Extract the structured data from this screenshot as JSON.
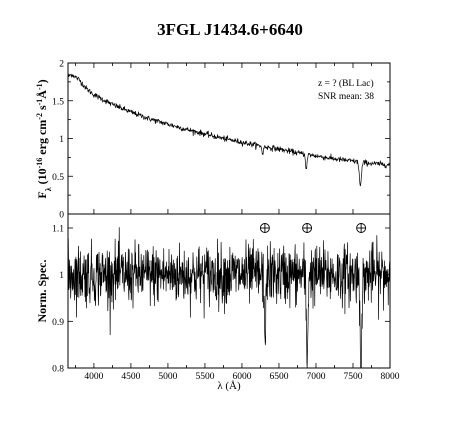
{
  "chart_data": [
    {
      "type": "line",
      "title": "3FGL J1434.6+6640",
      "ylabel_main": "F",
      "ylabel_sub": "λ",
      "ylabel_rest": " (10",
      "ylabel_exp": "-16",
      "ylabel_units": " erg cm",
      "ylabel_exp2": "-2",
      "ylabel_s": " s",
      "ylabel_exp3": "-1",
      "ylabel_A": "Å",
      "ylabel_exp4": "-1",
      "ylabel_close": ")",
      "xlim": [
        3650,
        8000
      ],
      "ylim": [
        0,
        2
      ],
      "yticks": [
        0,
        0.5,
        1,
        1.5,
        2
      ],
      "ytick_labels": [
        "0",
        "0.5",
        "1",
        "1.5",
        "2"
      ],
      "annotations": [
        "z = ? (BL Lac)",
        "SNR mean: 38"
      ],
      "continuum_anchors": {
        "x": [
          3650,
          3700,
          3800,
          3900,
          4000,
          4250,
          4500,
          4750,
          5000,
          5250,
          5500,
          5750,
          6000,
          6250,
          6500,
          6750,
          7000,
          7250,
          7500,
          7750,
          8000
        ],
        "y": [
          1.82,
          1.85,
          1.78,
          1.66,
          1.58,
          1.45,
          1.35,
          1.26,
          1.19,
          1.12,
          1.06,
          1.0,
          0.95,
          0.9,
          0.86,
          0.81,
          0.77,
          0.73,
          0.7,
          0.67,
          0.65
        ]
      },
      "absorption_features": [
        {
          "x": 6280,
          "depth": 0.12,
          "width": 8
        },
        {
          "x": 6870,
          "depth": 0.2,
          "width": 10
        },
        {
          "x": 7600,
          "depth": 0.32,
          "width": 14
        }
      ]
    },
    {
      "type": "line",
      "ylabel": "Norm. Spec.",
      "xlabel": "λ (Å)",
      "xlim": [
        3650,
        8000
      ],
      "ylim": [
        0.8,
        1.13
      ],
      "xticks": [
        4000,
        4500,
        5000,
        5500,
        6000,
        6500,
        7000,
        7500,
        8000
      ],
      "xtick_labels": [
        "4000",
        "4500",
        "5000",
        "5500",
        "6000",
        "6500",
        "7000",
        "7500",
        "8000"
      ],
      "yticks": [
        0.8,
        0.9,
        1.0,
        1.1
      ],
      "ytick_labels": [
        "0.8",
        "0.9",
        "1",
        "1.1"
      ],
      "noise_level": 0.032,
      "absorption_features": [
        {
          "x": 6310,
          "depth": 0.17,
          "width": 8
        },
        {
          "x": 6880,
          "depth": 0.19,
          "width": 10
        },
        {
          "x": 7610,
          "depth": 0.2,
          "width": 12
        }
      ],
      "telluric_markers_x": [
        6310,
        6880,
        7610
      ],
      "telluric_marker_y": 1.1
    }
  ]
}
